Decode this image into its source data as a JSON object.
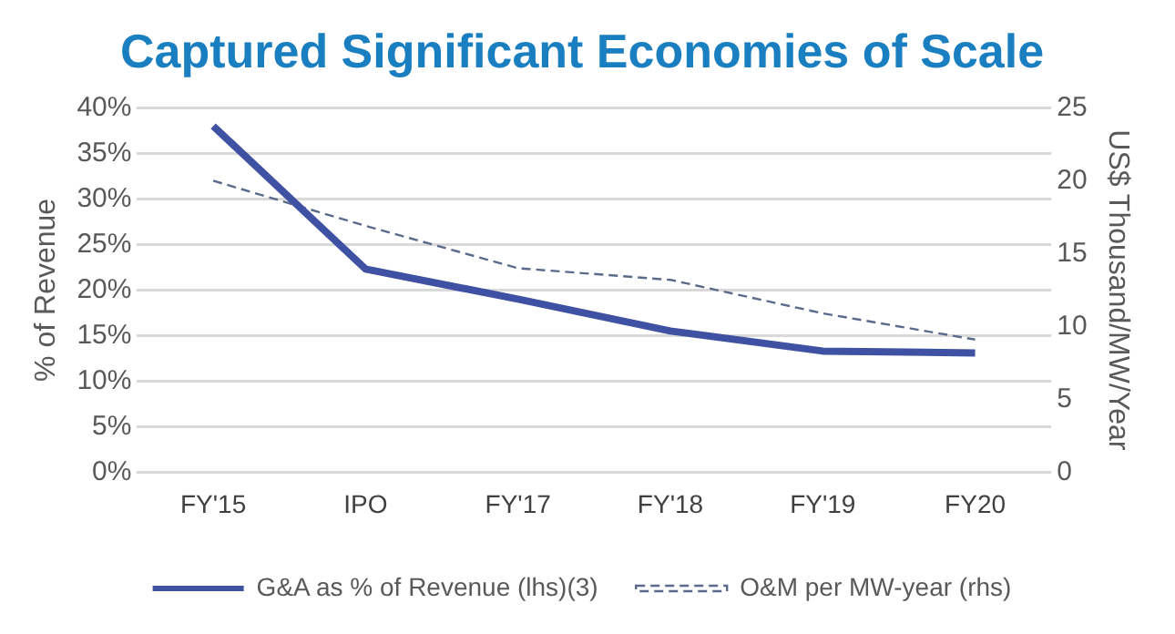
{
  "chart_data": {
    "type": "line",
    "title": "Captured Significant Economies of Scale",
    "ylabel": "% of Revenue",
    "y2label": "US$ Thousand/MW/Year",
    "categories": [
      "FY'15",
      "IPO",
      "FY'17",
      "FY'18",
      "FY'19",
      "FY20"
    ],
    "series": [
      {
        "name": "G&A as % of Revenue (lhs)(3)",
        "color": "#3f51a3",
        "values": [
          38,
          22.3,
          19,
          15.5,
          13.3,
          13.1
        ],
        "line_style": "solid"
      },
      {
        "name": "O&M per MW-year (rhs)",
        "color": "#5a6a8a",
        "values": [
          20,
          16.9,
          14,
          13.2,
          10.9,
          9.1
        ],
        "axis": "y2",
        "line_style": "dashed"
      }
    ],
    "ylim": [
      0,
      40
    ],
    "yticks": [
      {
        "value": 0,
        "label": "0%"
      },
      {
        "value": 5,
        "label": "5%"
      },
      {
        "value": 10,
        "label": "10%"
      },
      {
        "value": 15,
        "label": "15%"
      },
      {
        "value": 20,
        "label": "20%"
      },
      {
        "value": 25,
        "label": "25%"
      },
      {
        "value": 30,
        "label": "30%"
      },
      {
        "value": 35,
        "label": "35%"
      },
      {
        "value": 40,
        "label": "40%"
      }
    ],
    "y2lim": [
      0,
      25
    ],
    "y2ticks": [
      0,
      5,
      10,
      15,
      20,
      25
    ],
    "grid": "y",
    "legend": "bottom",
    "marker": "none"
  }
}
